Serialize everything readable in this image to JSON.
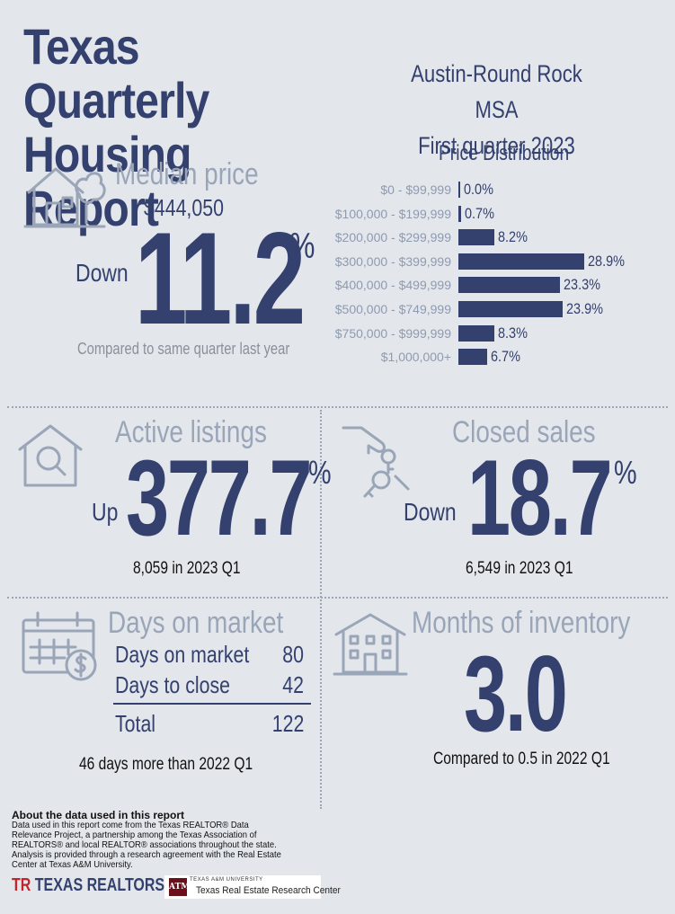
{
  "header": {
    "title_line1": "Texas Quarterly",
    "title_line2": "Housing Report",
    "region": "Austin-Round Rock MSA",
    "period": "First quarter 2023"
  },
  "median_price": {
    "label": "Median price",
    "value": "$444,050",
    "direction": "Down",
    "change": "11.2",
    "percent_sign": "%",
    "compare_text": "Compared to same quarter last year",
    "icon": "house-tree-icon"
  },
  "price_distribution": {
    "title": "Price Distribution",
    "chart_data": {
      "type": "bar",
      "orientation": "horizontal",
      "title": "Price Distribution",
      "categories": [
        "$0 - $99,999",
        "$100,000 - $199,999",
        "$200,000 - $299,999",
        "$300,000 - $399,999",
        "$400,000 - $499,999",
        "$500,000 - $749,999",
        "$750,000 - $999,999",
        "$1,000,000+"
      ],
      "values": [
        0.0,
        0.7,
        8.2,
        28.9,
        23.3,
        23.9,
        8.3,
        6.7
      ],
      "labels": [
        "0.0%",
        "0.7%",
        "8.2%",
        "28.9%",
        "23.3%",
        "23.9%",
        "8.3%",
        "6.7%"
      ],
      "unit": "%",
      "bar_color": "#34406e"
    }
  },
  "active_listings": {
    "label": "Active listings",
    "direction": "Up",
    "change": "377.7",
    "percent_sign": "%",
    "sub": "8,059 in 2023 Q1",
    "icon": "house-search-icon"
  },
  "closed_sales": {
    "label": "Closed sales",
    "direction": "Down",
    "change": "18.7",
    "percent_sign": "%",
    "sub": "6,549 in 2023 Q1",
    "icon": "hand-keys-icon"
  },
  "days_on_market": {
    "label": "Days on market",
    "rows": [
      {
        "label": "Days on market",
        "value": "80"
      },
      {
        "label": "Days to close",
        "value": "42"
      }
    ],
    "total_label": "Total",
    "total_value": "122",
    "sub": "46 days more than 2022 Q1",
    "icon": "calendar-dollar-icon"
  },
  "months_inventory": {
    "label": "Months of inventory",
    "value": "3.0",
    "sub": "Compared to 0.5 in 2022 Q1",
    "icon": "apartment-building-icon"
  },
  "about": {
    "title": "About the data used in this report",
    "text": "Data used in this report come from the Texas REALTOR® Data Relevance Project, a partnership among the Texas Association of REALTORS® and local REALTOR® associations throughout the state. Analysis is provided through a research agreement with the Real Estate Center at Texas A&M University."
  },
  "logos": {
    "realtors_mark": "TR",
    "realtors_name": "TEXAS REALTORS",
    "tamu_mark": "ATM",
    "tamu_small": "TEXAS A&M UNIVERSITY",
    "tamu_name": "Texas Real Estate Research Center"
  }
}
